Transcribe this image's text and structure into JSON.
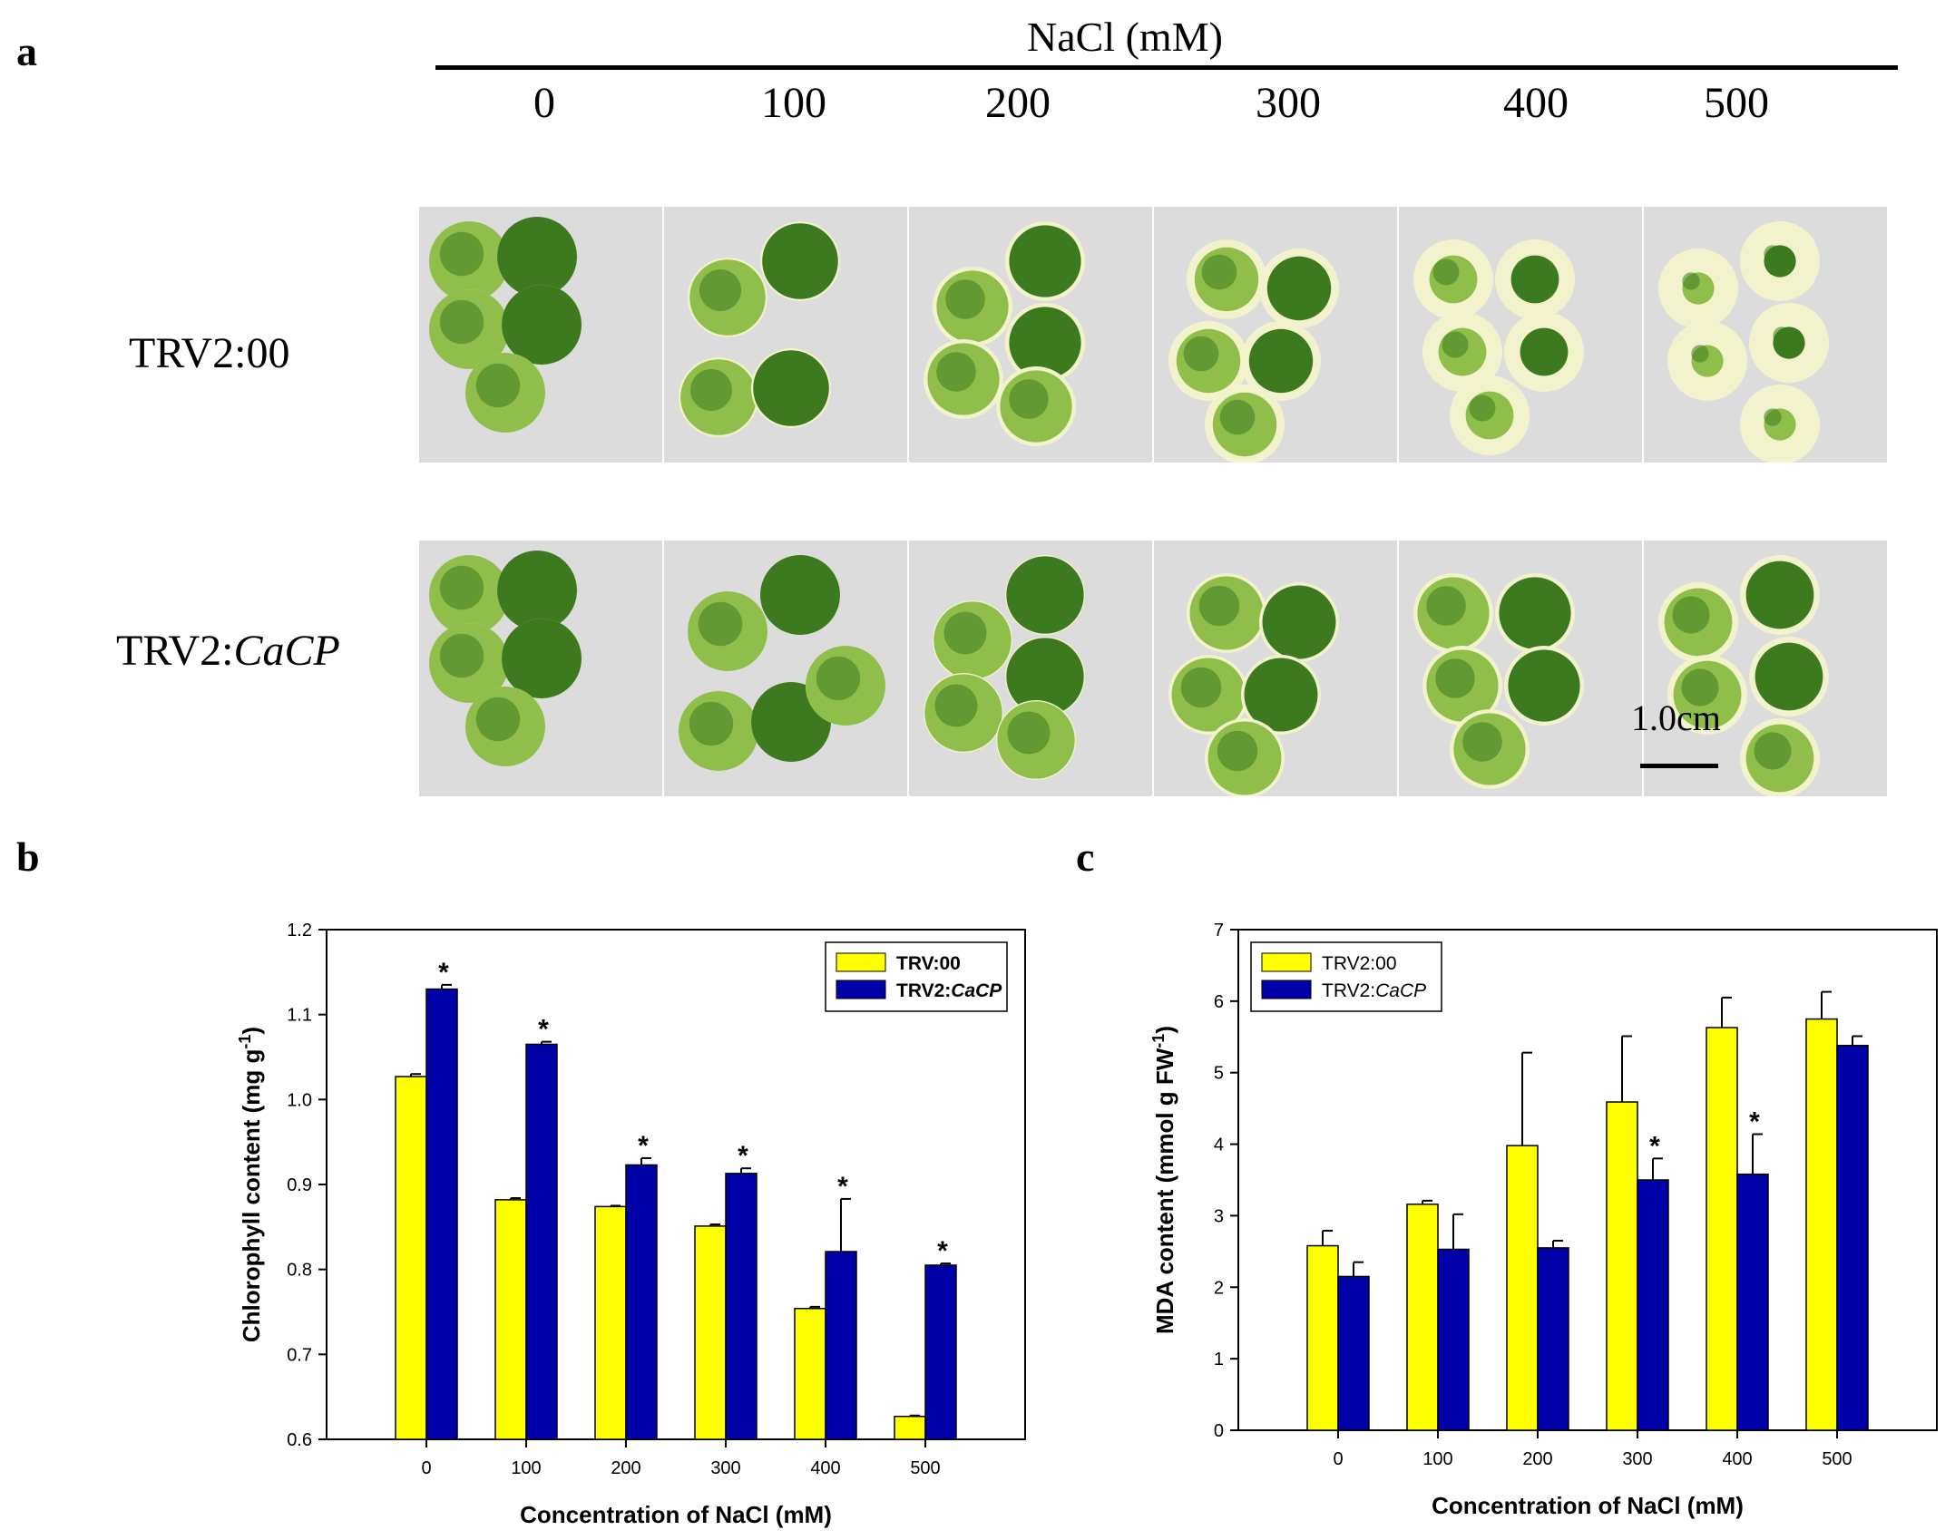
{
  "panel_a": {
    "letter": "a",
    "treatment_title": "NaCl (mM)",
    "concentrations": [
      "0",
      "100",
      "200",
      "300",
      "400",
      "500"
    ],
    "row_labels": [
      {
        "prefix": "TRV2:00",
        "italic": ""
      },
      {
        "prefix": "TRV2:",
        "italic": "CaCP"
      }
    ],
    "scale_bar_label": "1.0cm",
    "leaf_discs": {
      "TRV2:00": [
        {
          "green_fraction": 1.0,
          "count": 5
        },
        {
          "green_fraction": 0.95,
          "count": 4
        },
        {
          "green_fraction": 0.9,
          "count": 5
        },
        {
          "green_fraction": 0.8,
          "count": 5
        },
        {
          "green_fraction": 0.6,
          "count": 5
        },
        {
          "green_fraction": 0.4,
          "count": 5
        }
      ],
      "TRV2:CaCP": [
        {
          "green_fraction": 1.0,
          "count": 5
        },
        {
          "green_fraction": 1.0,
          "count": 5
        },
        {
          "green_fraction": 0.97,
          "count": 5
        },
        {
          "green_fraction": 0.92,
          "count": 5
        },
        {
          "green_fraction": 0.9,
          "count": 5
        },
        {
          "green_fraction": 0.85,
          "count": 5
        }
      ]
    },
    "colors": {
      "leaf_dark": "#3d7a1f",
      "leaf_light": "#8fbf4a",
      "bleached": "#f2f2cc",
      "background": "#dcdcdc"
    }
  },
  "chart_data": [
    {
      "panel_letter": "b",
      "type": "bar",
      "categories": [
        "0",
        "100",
        "200",
        "300",
        "400",
        "500"
      ],
      "xlabel": "Concentration of NaCl (mM)",
      "ylabel": "Chlorophyll content (mg g",
      "ylabel_sup": "-1",
      "ylabel_end": ")",
      "ylim": [
        0.6,
        1.2
      ],
      "yticks": [
        "0.6",
        "0.7",
        "0.8",
        "0.9",
        "1.0",
        "1.1",
        "1.2"
      ],
      "ytick_values": [
        0.6,
        0.7,
        0.8,
        0.9,
        1.0,
        1.1,
        1.2
      ],
      "series": [
        {
          "name": "TRV:00",
          "name_italic": "",
          "color": "#ffff00",
          "values": [
            1.027,
            0.882,
            0.874,
            0.851,
            0.754,
            0.627
          ],
          "errors": [
            0.003,
            0.002,
            0.001,
            0.002,
            0.002,
            0.001
          ],
          "sig": [
            "",
            "",
            "",
            "",
            "",
            ""
          ]
        },
        {
          "name": "TRV2:",
          "name_italic": "CaCP",
          "color": "#0000a8",
          "values": [
            1.13,
            1.065,
            0.923,
            0.913,
            0.821,
            0.805
          ],
          "errors": [
            0.005,
            0.003,
            0.008,
            0.006,
            0.062,
            0.002
          ],
          "sig": [
            "*",
            "*",
            "*",
            "*",
            "*",
            "*"
          ]
        }
      ],
      "legend_position": "top-right"
    },
    {
      "panel_letter": "c",
      "type": "bar",
      "categories": [
        "0",
        "100",
        "200",
        "300",
        "400",
        "500"
      ],
      "xlabel": "Concentration of NaCl (mM)",
      "ylabel": "MDA content (mmol g FW",
      "ylabel_sup": "-1",
      "ylabel_end": ")",
      "ylim": [
        0,
        7
      ],
      "yticks": [
        "0",
        "1",
        "2",
        "3",
        "4",
        "5",
        "6",
        "7"
      ],
      "ytick_values": [
        0,
        1,
        2,
        3,
        4,
        5,
        6,
        7
      ],
      "series": [
        {
          "name": "TRV2:00",
          "name_italic": "",
          "color": "#ffff00",
          "values": [
            2.58,
            3.16,
            3.98,
            4.59,
            5.63,
            5.75
          ],
          "errors": [
            0.21,
            0.05,
            1.3,
            0.92,
            0.42,
            0.38
          ],
          "sig": [
            "",
            "",
            "",
            "",
            "",
            ""
          ]
        },
        {
          "name": "TRV2:",
          "name_italic": "CaCP",
          "color": "#0000a8",
          "values": [
            2.15,
            2.53,
            2.55,
            3.5,
            3.58,
            5.38
          ],
          "errors": [
            0.2,
            0.49,
            0.1,
            0.3,
            0.56,
            0.13
          ],
          "sig": [
            "",
            "",
            "",
            "*",
            "*",
            ""
          ]
        }
      ],
      "legend_position": "top-left"
    }
  ]
}
